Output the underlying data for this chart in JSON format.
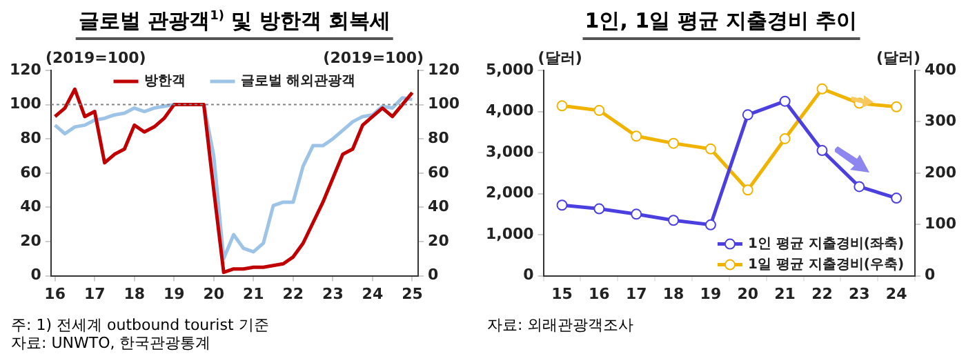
{
  "chart_data": [
    {
      "type": "line",
      "title": "글로벌 관광객$^{1)}$ 및 방한객 회복세",
      "ylabel": "(2019=100)",
      "y2label": "(2019=100)",
      "x": [
        16,
        16.25,
        16.5,
        16.75,
        17,
        17.25,
        17.5,
        17.75,
        18,
        18.25,
        18.5,
        18.75,
        19,
        19.25,
        19.5,
        19.75,
        20,
        20.25,
        20.5,
        20.75,
        21,
        21.25,
        21.5,
        21.75,
        22,
        22.25,
        22.5,
        22.75,
        23,
        23.25,
        23.5,
        23.75,
        24,
        24.25,
        24.5,
        24.75,
        25
      ],
      "series": [
        {
          "name": "방한객",
          "color": "#c00000",
          "values": [
            93,
            98,
            109,
            93,
            96,
            66,
            71,
            74,
            88,
            84,
            87,
            92,
            100,
            100,
            100,
            100,
            50,
            2,
            4,
            4,
            5,
            5,
            6,
            7,
            11,
            19,
            31,
            43,
            57,
            71,
            74,
            88,
            93,
            98,
            93,
            100,
            107
          ]
        },
        {
          "name": "글로벌 해외관광객",
          "color": "#9dc3e6",
          "values": [
            88,
            83,
            87,
            88,
            91,
            92,
            94,
            95,
            98,
            96,
            98,
            99,
            100,
            null,
            null,
            100,
            70,
            10,
            24,
            16,
            14,
            19,
            41,
            43,
            43,
            64,
            76,
            76,
            80,
            85,
            90,
            93,
            94,
            99,
            98,
            104,
            103
          ]
        }
      ],
      "xlim": [
        15.9,
        25.15
      ],
      "xticks": [
        16,
        17,
        18,
        19,
        20,
        21,
        22,
        23,
        24,
        25
      ],
      "ylim": [
        0,
        120
      ],
      "yticks": [
        0,
        20,
        40,
        60,
        80,
        100,
        120
      ],
      "y2lim": [
        0,
        120
      ],
      "y2ticks": [
        0,
        20,
        40,
        60,
        80,
        100,
        120
      ],
      "ref_lines": [
        {
          "axis": "y",
          "value": 100,
          "color": "#808080",
          "line_style": "dotted"
        }
      ],
      "grid": false,
      "legend": "top",
      "marker": "none",
      "line_style": "solid",
      "annotations": [
        "주: 1) 전세계 outbound tourist 기준",
        "자료: UNWTO, 한국관광통계"
      ]
    },
    {
      "type": "line",
      "title": "1인, 1일 평균 지출경비 추이",
      "ylabel": "(달러)",
      "y2label": "(달러)",
      "categories": [
        "15",
        "16",
        "17",
        "18",
        "19",
        "20",
        "21",
        "22",
        "23",
        "24"
      ],
      "series": [
        {
          "name": "1인 평균 지출경비(좌축)",
          "color": "#4b3fe0",
          "values": [
            1720,
            1630,
            1500,
            1350,
            1240,
            3920,
            4250,
            3050,
            2170,
            1890
          ]
        },
        {
          "name": "1일 평균 지출경비(우축)",
          "color": "#f0b400",
          "axis": "y2",
          "values": [
            331,
            322,
            272,
            258,
            247,
            167,
            267,
            364,
            336,
            329
          ]
        }
      ],
      "ylim": [
        0,
        5000
      ],
      "yticks": [
        0,
        {
          "value": 1000,
          "label": "1,000"
        },
        {
          "value": 2000,
          "label": "2,000"
        },
        {
          "value": 3000,
          "label": "3,000"
        },
        {
          "value": 4000,
          "label": "4,000"
        },
        {
          "value": 5000,
          "label": "5,000"
        }
      ],
      "y2lim": [
        0,
        400
      ],
      "y2ticks": [
        0,
        100,
        200,
        300,
        400
      ],
      "grid": false,
      "legend": "bottom right",
      "marker": "circle",
      "line_style": "solid",
      "annotations": [
        "자료: 외래관광객조사"
      ]
    }
  ]
}
